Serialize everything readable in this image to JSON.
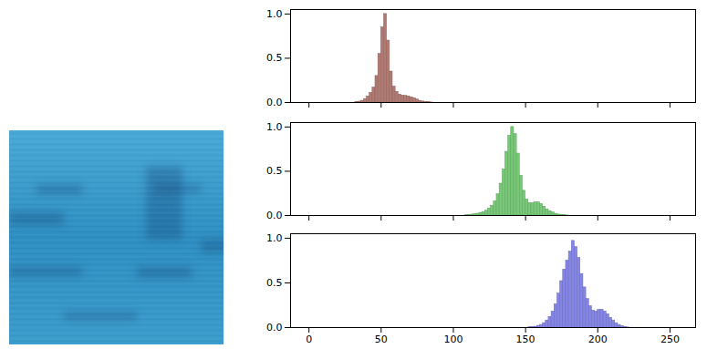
{
  "chart_data": [
    {
      "type": "histogram",
      "color": "#b07a72",
      "bins": [
        30,
        32,
        34,
        36,
        38,
        40,
        42,
        44,
        46,
        48,
        50,
        52,
        54,
        56,
        58,
        60,
        62,
        64,
        66,
        68,
        70,
        72,
        74,
        76,
        78,
        80,
        82,
        84,
        86
      ],
      "values": [
        0,
        0.005,
        0.01,
        0.02,
        0.04,
        0.07,
        0.11,
        0.17,
        0.3,
        0.55,
        0.85,
        1.0,
        0.7,
        0.35,
        0.18,
        0.12,
        0.09,
        0.08,
        0.075,
        0.07,
        0.06,
        0.05,
        0.035,
        0.02,
        0.012,
        0.006,
        0.003,
        0.001
      ],
      "xlim": [
        -12.75,
        267.75
      ],
      "xticks": [
        0,
        50,
        100,
        150,
        200,
        250
      ],
      "ylim": [
        0,
        1.05
      ],
      "yticks": [
        {
          "value": 0,
          "label": "0.0"
        },
        {
          "value": 0.5,
          "label": "0.5"
        },
        {
          "value": 1,
          "label": "1.0"
        }
      ],
      "tick_labels": "y"
    },
    {
      "type": "histogram",
      "color": "#77c977",
      "bins": [
        106,
        108,
        110,
        112,
        114,
        116,
        118,
        120,
        122,
        124,
        126,
        128,
        130,
        132,
        134,
        136,
        138,
        140,
        142,
        144,
        146,
        148,
        150,
        152,
        154,
        156,
        158,
        160,
        162,
        164,
        166,
        168,
        170,
        172,
        174,
        176,
        178,
        180
      ],
      "values": [
        0,
        0.003,
        0.006,
        0.01,
        0.015,
        0.02,
        0.03,
        0.04,
        0.055,
        0.08,
        0.11,
        0.16,
        0.24,
        0.36,
        0.52,
        0.72,
        0.9,
        1.0,
        0.92,
        0.7,
        0.45,
        0.28,
        0.18,
        0.14,
        0.14,
        0.15,
        0.15,
        0.13,
        0.1,
        0.07,
        0.05,
        0.035,
        0.02,
        0.012,
        0.006,
        0.003,
        0.001
      ],
      "xlim": [
        -12.75,
        267.75
      ],
      "xticks": [
        0,
        50,
        100,
        150,
        200,
        250
      ],
      "ylim": [
        0,
        1.05
      ],
      "yticks": [
        {
          "value": 0,
          "label": "0.0"
        },
        {
          "value": 0.5,
          "label": "0.5"
        },
        {
          "value": 1,
          "label": "1.0"
        }
      ],
      "tick_labels": "y"
    },
    {
      "type": "histogram",
      "color": "#8585e6",
      "bins": [
        150,
        152,
        154,
        156,
        158,
        160,
        162,
        164,
        166,
        168,
        170,
        172,
        174,
        176,
        178,
        180,
        182,
        184,
        186,
        188,
        190,
        192,
        194,
        196,
        198,
        200,
        202,
        204,
        206,
        208,
        210,
        212,
        214,
        216,
        218,
        220,
        222
      ],
      "values": [
        0,
        0.003,
        0.006,
        0.01,
        0.02,
        0.03,
        0.05,
        0.08,
        0.12,
        0.18,
        0.26,
        0.38,
        0.52,
        0.65,
        0.75,
        0.85,
        0.97,
        0.9,
        0.78,
        0.6,
        0.45,
        0.32,
        0.24,
        0.19,
        0.18,
        0.2,
        0.2,
        0.18,
        0.15,
        0.11,
        0.08,
        0.05,
        0.03,
        0.015,
        0.006,
        0.002
      ],
      "xlim": [
        -12.75,
        267.75
      ],
      "xticks": [
        0,
        50,
        100,
        150,
        200,
        250
      ],
      "ylim": [
        0,
        1.05
      ],
      "yticks": [
        {
          "value": 0,
          "label": "0.0"
        },
        {
          "value": 0.5,
          "label": "0.5"
        },
        {
          "value": 1,
          "label": "1.0"
        }
      ]
    }
  ]
}
